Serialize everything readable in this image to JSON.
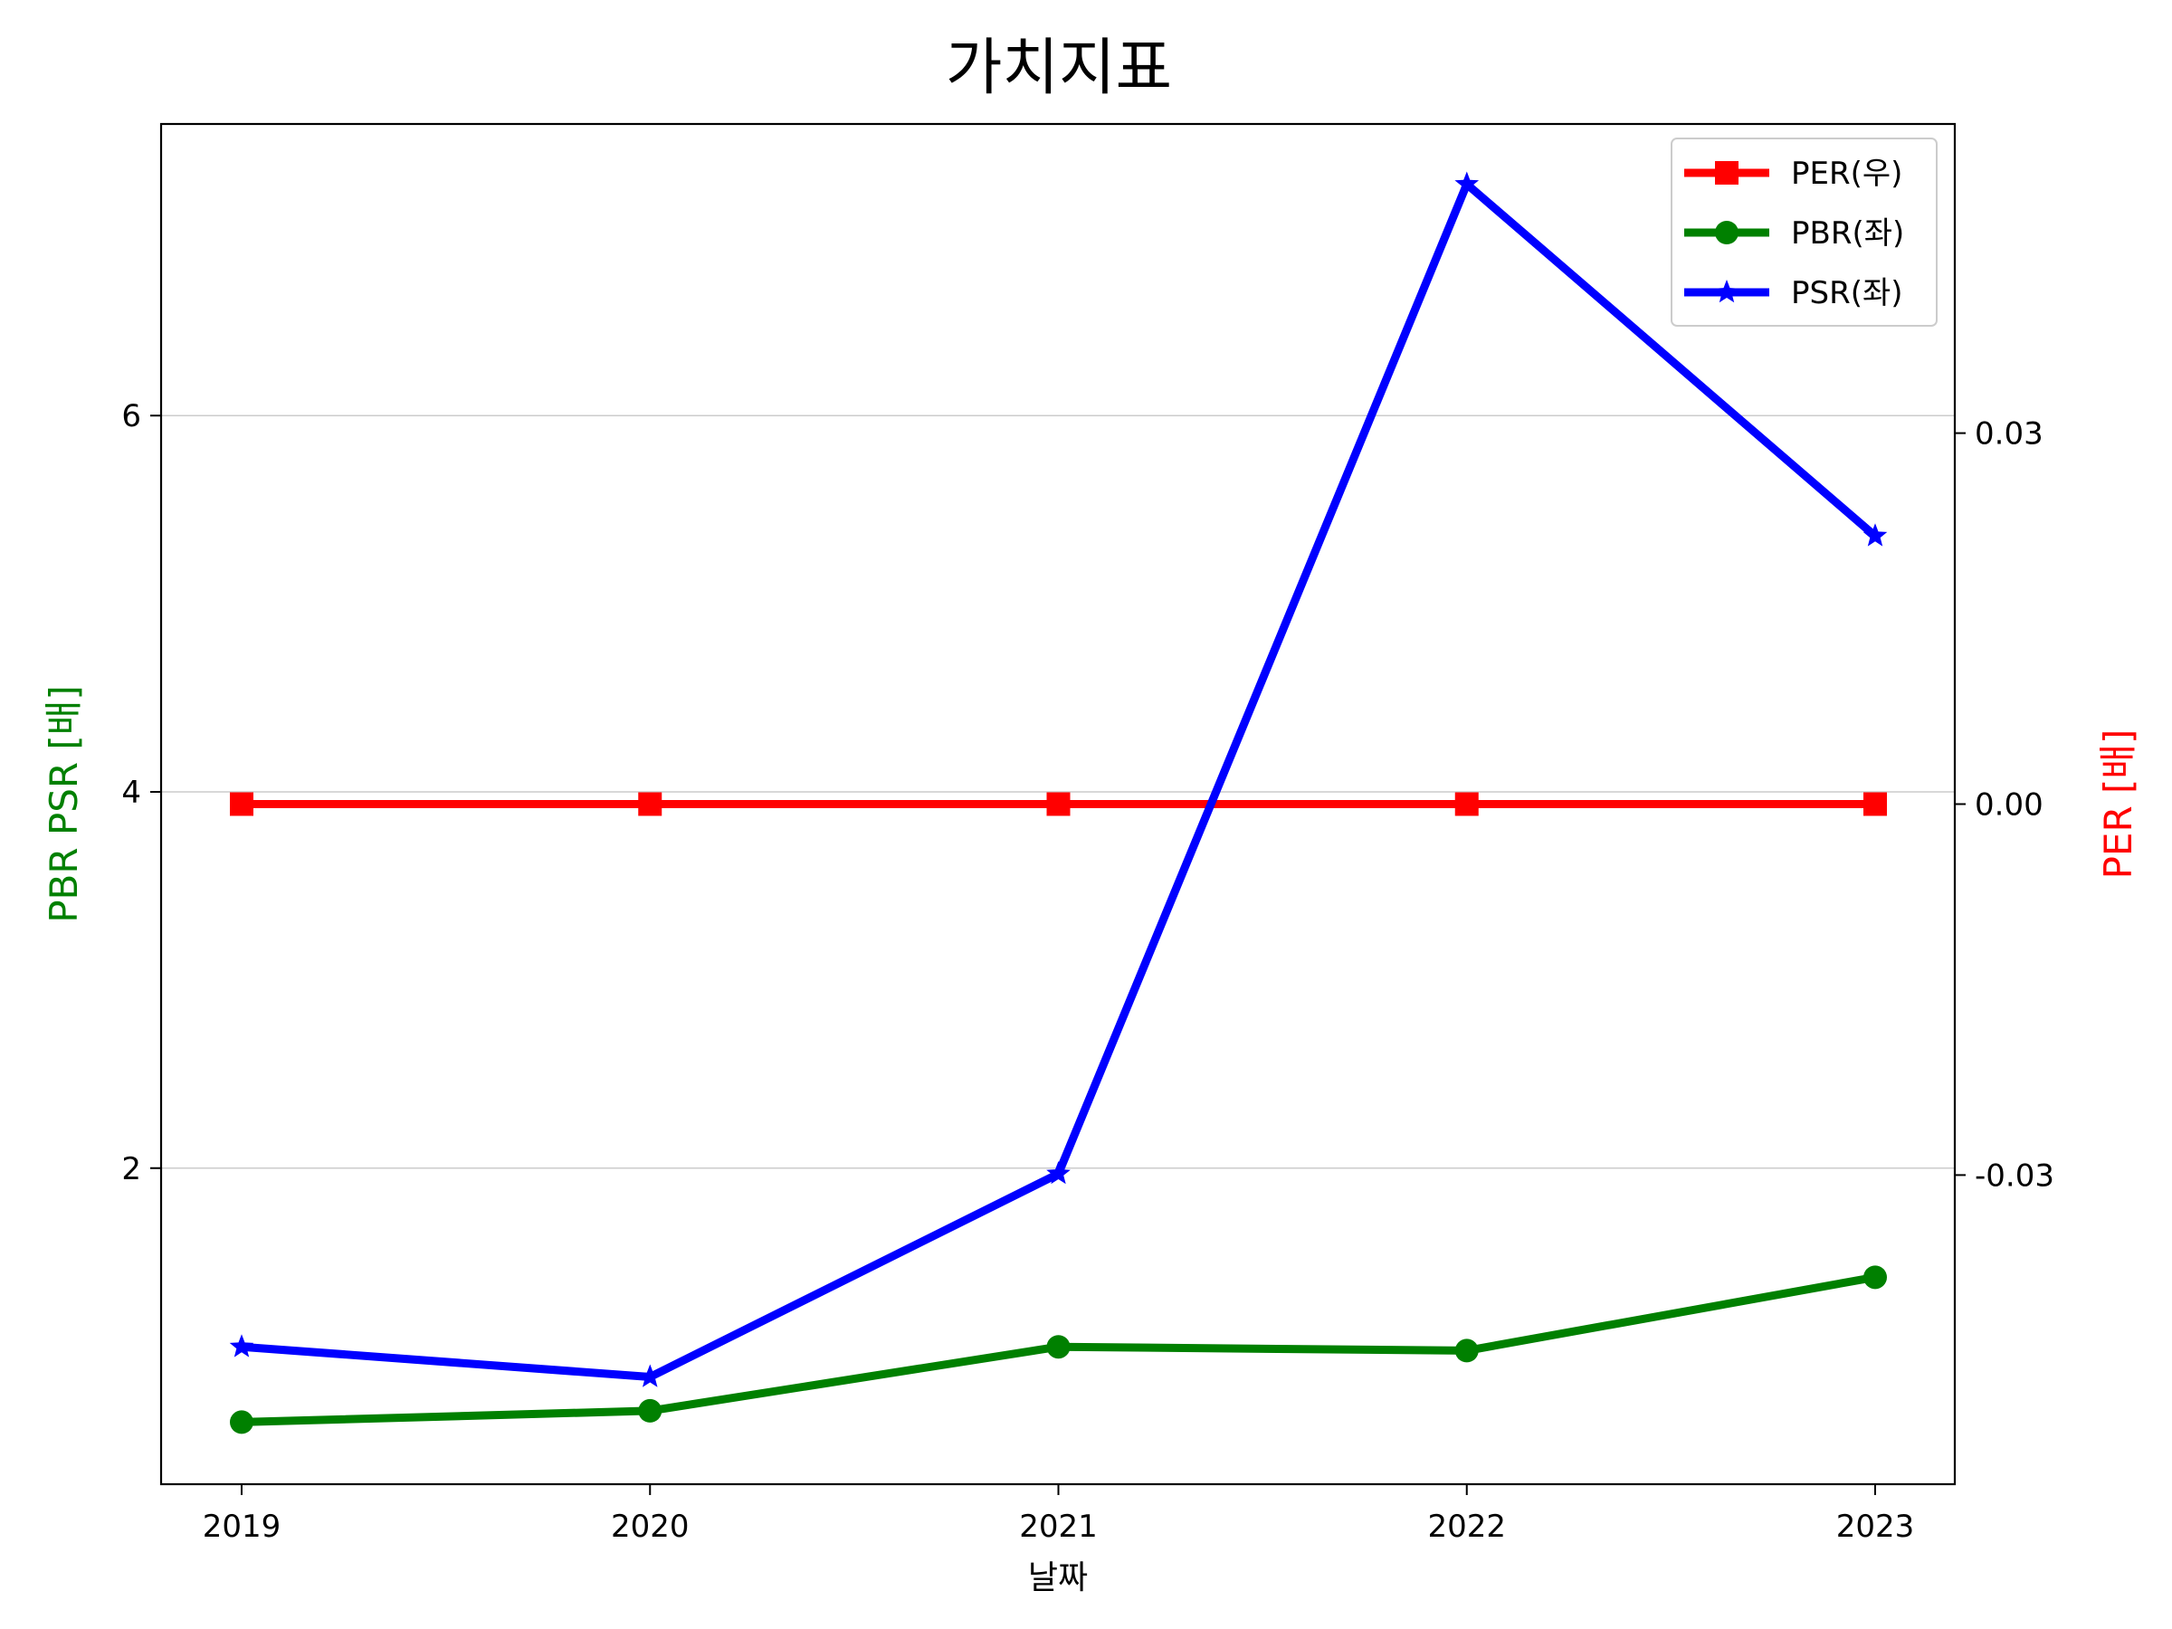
{
  "chart_data": {
    "type": "line",
    "title": "가치지표",
    "xlabel": "날짜",
    "ylabel_left": "PBR PSR [배]",
    "ylabel_right": "PER [배]",
    "x": [
      "2019",
      "2020",
      "2021",
      "2022",
      "2023"
    ],
    "y_left_lim": [
      0.32,
      7.55
    ],
    "y_left_ticks": [
      2,
      4,
      6
    ],
    "y_right_lim": [
      -0.055,
      0.055
    ],
    "y_right_ticks": [
      -0.03,
      0.0,
      0.03
    ],
    "y_right_tick_labels": [
      "-0.03",
      "0.00",
      "0.03"
    ],
    "grid": true,
    "legend_position": "top-right",
    "series": [
      {
        "name": "PER(우)",
        "axis": "right",
        "color": "#ff0000",
        "marker": "square",
        "values": [
          0.0,
          0.0,
          0.0,
          0.0,
          0.0
        ]
      },
      {
        "name": "PBR(좌)",
        "axis": "left",
        "color": "#008000",
        "marker": "circle",
        "values": [
          0.65,
          0.71,
          1.05,
          1.03,
          1.42
        ]
      },
      {
        "name": "PSR(좌)",
        "axis": "left",
        "color": "#0000ff",
        "marker": "star",
        "values": [
          1.05,
          0.89,
          1.97,
          7.23,
          5.36
        ]
      }
    ]
  }
}
